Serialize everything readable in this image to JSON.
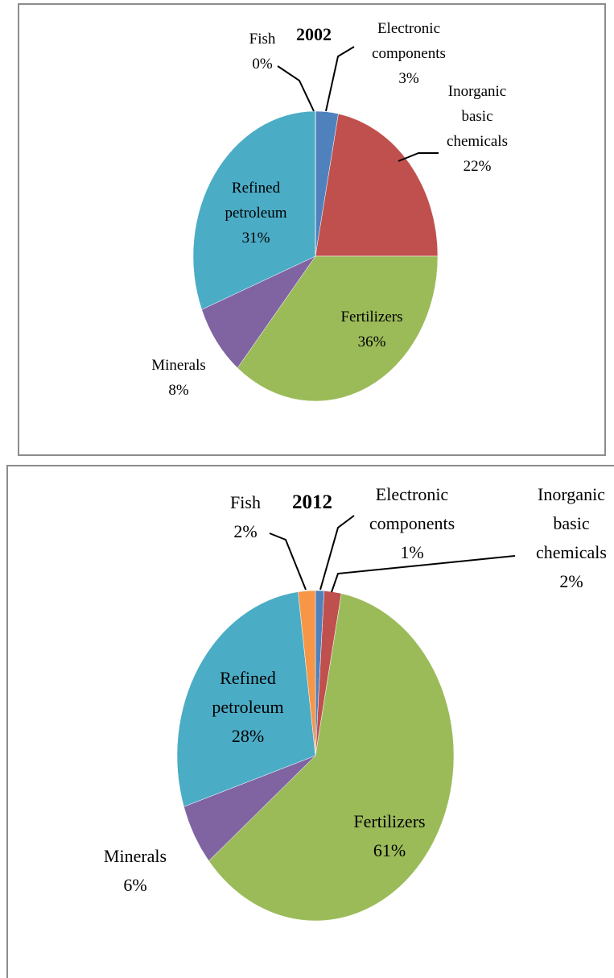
{
  "chart_data": [
    {
      "type": "pie",
      "title": "2002",
      "categories": [
        "Electronic components",
        "Inorganic basic chemicals",
        "Fertilizers",
        "Minerals",
        "Refined petroleum",
        "Fish"
      ],
      "values": [
        3,
        22,
        36,
        8,
        31,
        0
      ],
      "value_labels": [
        "3%",
        "22%",
        "36%",
        "8%",
        "31%",
        "0%"
      ],
      "colors": [
        "#4f81bd",
        "#c0504d",
        "#9bbb59",
        "#8064a2",
        "#4bacc6",
        "#f79646"
      ]
    },
    {
      "type": "pie",
      "title": "2012",
      "categories": [
        "Electronic components",
        "Inorganic basic chemicals",
        "Fertilizers",
        "Minerals",
        "Refined petroleum",
        "Fish"
      ],
      "values": [
        1,
        2,
        61,
        6,
        28,
        2
      ],
      "value_labels": [
        "1%",
        "2%",
        "61%",
        "6%",
        "28%",
        "2%"
      ],
      "colors": [
        "#4f81bd",
        "#c0504d",
        "#9bbb59",
        "#8064a2",
        "#4bacc6",
        "#f79646"
      ]
    }
  ]
}
